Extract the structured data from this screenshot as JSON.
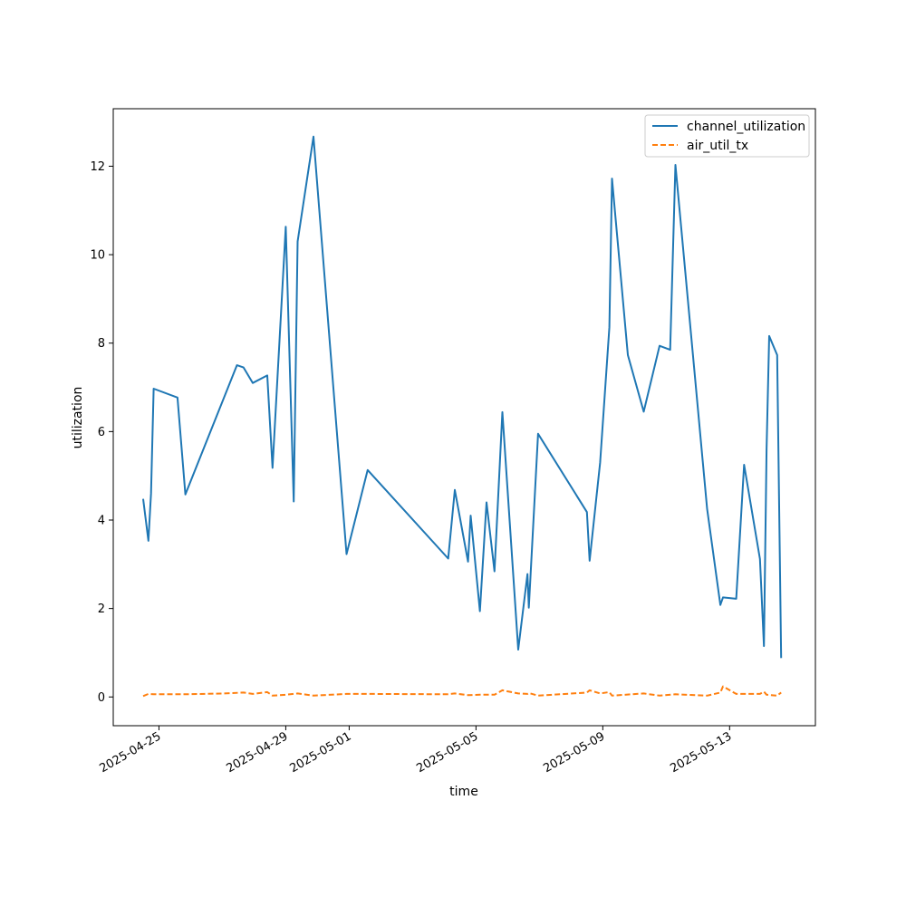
{
  "chart_data": {
    "type": "line",
    "title": "",
    "xlabel": "time",
    "ylabel": "utilization",
    "x_tick_labels": [
      "2025-04-25",
      "2025-04-29",
      "2025-05-01",
      "2025-05-05",
      "2025-05-09",
      "2025-05-13"
    ],
    "y_tick_labels": [
      "0",
      "2",
      "4",
      "6",
      "8",
      "10",
      "12"
    ],
    "ylim": [
      -0.65,
      13.3
    ],
    "xlim": [
      "2025-04-23T13:24",
      "2025-05-15T16:57"
    ],
    "grid": false,
    "legend_position": "top-right",
    "series": [
      {
        "name": "channel_utilization",
        "color": "#1f77b4",
        "style": "solid",
        "points": [
          [
            "2025-04-24T12:00",
            4.48
          ],
          [
            "2025-04-24T16:00",
            3.53
          ],
          [
            "2025-04-24T18:00",
            4.6
          ],
          [
            "2025-04-24T20:00",
            6.97
          ],
          [
            "2025-04-25T14:00",
            6.77
          ],
          [
            "2025-04-25T20:00",
            4.58
          ],
          [
            "2025-04-27T11:00",
            7.5
          ],
          [
            "2025-04-27T16:00",
            7.45
          ],
          [
            "2025-04-27T23:00",
            7.1
          ],
          [
            "2025-04-28T10:00",
            7.27
          ],
          [
            "2025-04-28T14:00",
            5.18
          ],
          [
            "2025-04-29T00:00",
            10.63
          ],
          [
            "2025-04-29T06:00",
            4.42
          ],
          [
            "2025-04-29T09:00",
            10.3
          ],
          [
            "2025-04-29T21:00",
            12.67
          ],
          [
            "2025-04-30T22:00",
            3.23
          ],
          [
            "2025-05-01T14:00",
            5.13
          ],
          [
            "2025-05-04T03:00",
            3.13
          ],
          [
            "2025-05-04T08:00",
            4.68
          ],
          [
            "2025-05-04T18:00",
            3.06
          ],
          [
            "2025-05-04T20:00",
            4.1
          ],
          [
            "2025-05-05T03:00",
            1.94
          ],
          [
            "2025-05-05T08:00",
            4.4
          ],
          [
            "2025-05-05T14:00",
            2.84
          ],
          [
            "2025-05-05T20:00",
            6.44
          ],
          [
            "2025-05-06T08:00",
            1.07
          ],
          [
            "2025-05-06T15:00",
            2.78
          ],
          [
            "2025-05-06T16:00",
            2.02
          ],
          [
            "2025-05-06T23:00",
            5.95
          ],
          [
            "2025-05-08T12:00",
            4.18
          ],
          [
            "2025-05-08T14:00",
            3.08
          ],
          [
            "2025-05-08T22:00",
            5.3
          ],
          [
            "2025-05-09T05:00",
            8.36
          ],
          [
            "2025-05-09T07:00",
            11.72
          ],
          [
            "2025-05-09T19:00",
            7.73
          ],
          [
            "2025-05-10T07:00",
            6.45
          ],
          [
            "2025-05-10T19:00",
            7.94
          ],
          [
            "2025-05-11T03:00",
            7.85
          ],
          [
            "2025-05-11T07:00",
            12.03
          ],
          [
            "2025-05-12T07:00",
            4.25
          ],
          [
            "2025-05-12T17:00",
            2.08
          ],
          [
            "2025-05-12T19:00",
            2.25
          ],
          [
            "2025-05-13T05:00",
            2.22
          ],
          [
            "2025-05-13T11:00",
            5.25
          ],
          [
            "2025-05-13T23:00",
            3.12
          ],
          [
            "2025-05-14T02:00",
            1.15
          ],
          [
            "2025-05-14T04:00",
            5.6
          ],
          [
            "2025-05-14T06:00",
            8.16
          ],
          [
            "2025-05-14T12:00",
            7.73
          ],
          [
            "2025-05-14T15:00",
            0.88
          ]
        ]
      },
      {
        "name": "air_util_tx",
        "color": "#ff7f0e",
        "style": "dashed",
        "points": [
          [
            "2025-04-24T12:00",
            0.02
          ],
          [
            "2025-04-24T16:00",
            0.07
          ],
          [
            "2025-04-24T20:00",
            0.06
          ],
          [
            "2025-04-25T20:00",
            0.06
          ],
          [
            "2025-04-27T01:00",
            0.08
          ],
          [
            "2025-04-27T16:00",
            0.1
          ],
          [
            "2025-04-27T23:00",
            0.07
          ],
          [
            "2025-04-28T10:00",
            0.11
          ],
          [
            "2025-04-28T14:00",
            0.03
          ],
          [
            "2025-04-29T00:00",
            0.05
          ],
          [
            "2025-04-29T09:00",
            0.08
          ],
          [
            "2025-04-29T21:00",
            0.03
          ],
          [
            "2025-04-30T22:00",
            0.07
          ],
          [
            "2025-05-01T14:00",
            0.07
          ],
          [
            "2025-05-04T03:00",
            0.06
          ],
          [
            "2025-05-04T08:00",
            0.08
          ],
          [
            "2025-05-04T18:00",
            0.04
          ],
          [
            "2025-05-05T03:00",
            0.05
          ],
          [
            "2025-05-05T14:00",
            0.05
          ],
          [
            "2025-05-05T20:00",
            0.15
          ],
          [
            "2025-05-06T08:00",
            0.08
          ],
          [
            "2025-05-06T15:00",
            0.07
          ],
          [
            "2025-05-06T16:00",
            0.09
          ],
          [
            "2025-05-06T23:00",
            0.03
          ],
          [
            "2025-05-08T12:00",
            0.1
          ],
          [
            "2025-05-08T14:00",
            0.15
          ],
          [
            "2025-05-08T22:00",
            0.08
          ],
          [
            "2025-05-09T05:00",
            0.11
          ],
          [
            "2025-05-09T07:00",
            0.03
          ],
          [
            "2025-05-10T07:00",
            0.08
          ],
          [
            "2025-05-10T19:00",
            0.03
          ],
          [
            "2025-05-11T07:00",
            0.06
          ],
          [
            "2025-05-12T07:00",
            0.03
          ],
          [
            "2025-05-12T17:00",
            0.1
          ],
          [
            "2025-05-12T19:00",
            0.24
          ],
          [
            "2025-05-13T05:00",
            0.07
          ],
          [
            "2025-05-13T23:00",
            0.07
          ],
          [
            "2025-05-14T02:00",
            0.12
          ],
          [
            "2025-05-14T04:00",
            0.05
          ],
          [
            "2025-05-14T12:00",
            0.03
          ],
          [
            "2025-05-14T15:00",
            0.1
          ]
        ]
      }
    ]
  }
}
